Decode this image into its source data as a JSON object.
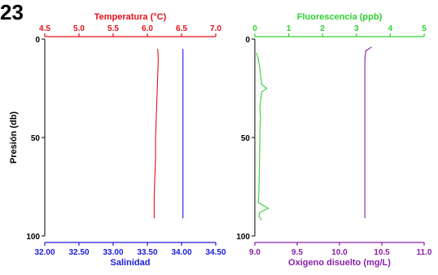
{
  "figure_label": "23",
  "colors": {
    "temperature": "#e0121c",
    "salinity": "#1b1bd8",
    "fluorescence": "#2ed12e",
    "oxygen": "#8a1ea8",
    "axis": "#000000"
  },
  "chart_data": [
    {
      "type": "line",
      "ylabel": "Presión (db)",
      "ylim": [
        0,
        100
      ],
      "y_inverted": true,
      "yticks": [
        0,
        50,
        100
      ],
      "top_axis": {
        "label": "Temperatura (°C)",
        "range": [
          4.5,
          7.0
        ],
        "ticks": [
          "4.5",
          "5.0",
          "5.5",
          "6.0",
          "6.5",
          "7.0"
        ],
        "color": "temperature"
      },
      "bottom_axis": {
        "label": "Salinidad",
        "range": [
          32.0,
          34.5
        ],
        "ticks": [
          "32.00",
          "32.50",
          "33.00",
          "33.50",
          "34.00",
          "34.50"
        ],
        "color": "salinity"
      },
      "series": [
        {
          "axis": "top",
          "color": "temperature",
          "points": [
            [
              6.15,
              5
            ],
            [
              6.16,
              10
            ],
            [
              6.15,
              20
            ],
            [
              6.14,
              30
            ],
            [
              6.13,
              40
            ],
            [
              6.12,
              50
            ],
            [
              6.12,
              60
            ],
            [
              6.11,
              70
            ],
            [
              6.1,
              80
            ],
            [
              6.1,
              91
            ]
          ]
        },
        {
          "axis": "bottom",
          "color": "salinity",
          "points": [
            [
              34.02,
              5
            ],
            [
              34.02,
              20
            ],
            [
              34.02,
              40
            ],
            [
              34.02,
              60
            ],
            [
              34.02,
              80
            ],
            [
              34.02,
              91
            ]
          ]
        }
      ]
    },
    {
      "type": "line",
      "ylabel": "",
      "ylim": [
        0,
        100
      ],
      "y_inverted": true,
      "yticks": [
        0,
        50,
        100
      ],
      "top_axis": {
        "label": "Fluorescencia (ppb)",
        "range": [
          0,
          5
        ],
        "ticks": [
          "0",
          "1",
          "2",
          "3",
          "4",
          "5"
        ],
        "color": "fluorescence"
      },
      "bottom_axis": {
        "label": "Oxigeno disuelto (mg/L)",
        "range": [
          9.0,
          11.0
        ],
        "ticks": [
          "9.0",
          "9.5",
          "10.0",
          "10.5",
          "11.0"
        ],
        "color": "oxygen"
      },
      "series": [
        {
          "axis": "top",
          "color": "fluorescence",
          "points": [
            [
              0.05,
              7
            ],
            [
              0.1,
              10
            ],
            [
              0.15,
              15
            ],
            [
              0.18,
              20
            ],
            [
              0.2,
              23
            ],
            [
              0.35,
              25
            ],
            [
              0.2,
              27
            ],
            [
              0.18,
              30
            ],
            [
              0.15,
              35
            ],
            [
              0.17,
              40
            ],
            [
              0.15,
              45
            ],
            [
              0.15,
              50
            ],
            [
              0.14,
              60
            ],
            [
              0.13,
              70
            ],
            [
              0.12,
              78
            ],
            [
              0.1,
              83
            ],
            [
              0.4,
              86
            ],
            [
              0.15,
              88
            ],
            [
              0.12,
              90
            ],
            [
              0.2,
              92
            ]
          ]
        },
        {
          "axis": "bottom",
          "color": "oxygen",
          "points": [
            [
              10.38,
              4
            ],
            [
              10.31,
              6
            ],
            [
              10.3,
              10
            ],
            [
              10.3,
              30
            ],
            [
              10.3,
              50
            ],
            [
              10.3,
              70
            ],
            [
              10.3,
              91
            ]
          ]
        }
      ]
    }
  ]
}
